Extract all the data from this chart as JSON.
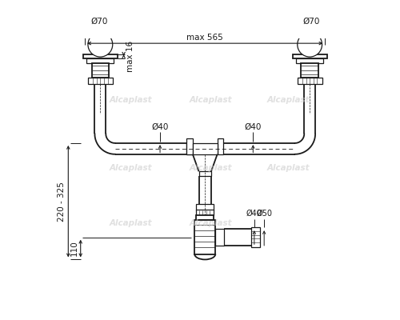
{
  "bg_color": "#ffffff",
  "line_color": "#1a1a1a",
  "dim_color": "#1a1a1a",
  "watermark_color": "#cccccc",
  "watermark_text": "Alcaplast",
  "annotations": {
    "max565": "max 565",
    "d70_left": "Ø70",
    "d70_right": "Ø70",
    "max16": "max 16",
    "d40_left": "Ø40",
    "d40_right": "Ø40",
    "d40_bottom": "Ø40",
    "d50": "Ø50",
    "dim_220_325": "220 - 325",
    "dim_110": "110"
  },
  "figsize": [
    5.0,
    4.0
  ],
  "dpi": 100
}
